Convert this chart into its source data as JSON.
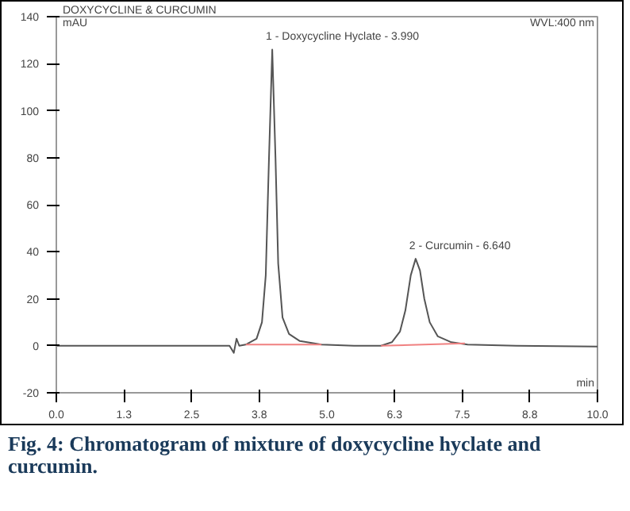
{
  "chart_data": {
    "type": "line",
    "title": "DOXYCYCLINE & CURCUMIN",
    "subtitle": "WVL:400 nm",
    "xlabel": "min",
    "ylabel": "mAU",
    "xlim": [
      0,
      10
    ],
    "ylim": [
      -20,
      140
    ],
    "xticks": [
      {
        "value": 0,
        "label": "0.0"
      },
      {
        "value": 1.25,
        "label": "1.3"
      },
      {
        "value": 2.5,
        "label": "2.5"
      },
      {
        "value": 3.75,
        "label": "3.8"
      },
      {
        "value": 5,
        "label": "5.0"
      },
      {
        "value": 6.25,
        "label": "6.3"
      },
      {
        "value": 7.5,
        "label": "7.5"
      },
      {
        "value": 8.75,
        "label": "8.8"
      },
      {
        "value": 10,
        "label": "10.0"
      }
    ],
    "yticks": [
      -20,
      0,
      20,
      40,
      60,
      80,
      100,
      120,
      140
    ],
    "grid": false,
    "marker": "none",
    "line_style": "solid",
    "series": [
      {
        "color": "#555555",
        "x": [
          0,
          3.2,
          3.28,
          3.33,
          3.38,
          3.5,
          3.7,
          3.8,
          3.87,
          3.93,
          3.99,
          4.05,
          4.1,
          4.18,
          4.3,
          4.5,
          4.9,
          5.5,
          6.0,
          6.2,
          6.35,
          6.45,
          6.55,
          6.64,
          6.72,
          6.8,
          6.9,
          7.05,
          7.3,
          7.6,
          8.5,
          10
        ],
        "values": [
          0,
          0,
          -3,
          3,
          0,
          0.5,
          3,
          10,
          30,
          80,
          126,
          80,
          35,
          12,
          5,
          2,
          0.5,
          0,
          0,
          1.5,
          6,
          15,
          30,
          37,
          32,
          20,
          10,
          4,
          1.5,
          0.5,
          0,
          -0.3
        ]
      },
      {
        "color": "#f08080",
        "x": [
          3.5,
          4.9
        ],
        "values": [
          0.5,
          0.5
        ]
      },
      {
        "color": "#f08080",
        "x": [
          6.0,
          7.55
        ],
        "values": [
          0,
          1
        ]
      }
    ],
    "annotations": [
      {
        "text": "1 - Doxycycline Hyclate - 3.990",
        "x": 3.99,
        "y": 126
      },
      {
        "text": "2 - Curcumin - 6.640",
        "x": 6.64,
        "y": 37
      },
      "Fig. 4: Chromatogram of mixture of doxycycline hyclate and curcumin."
    ]
  }
}
